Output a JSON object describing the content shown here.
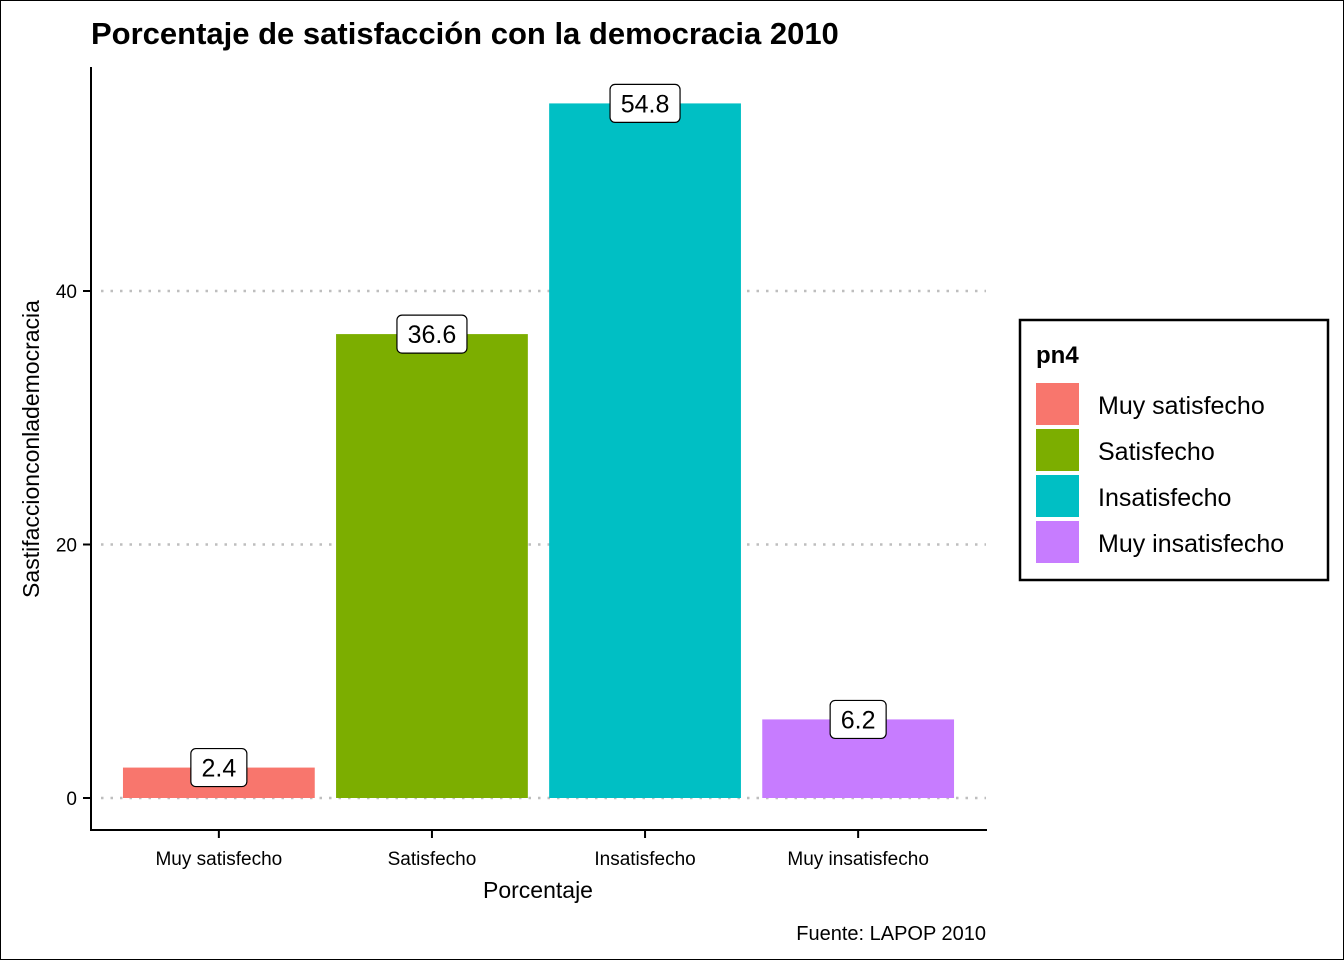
{
  "chart_data": {
    "type": "bar",
    "title": "Porcentaje de satisfacción con la democracia 2010",
    "xlabel": "Porcentaje",
    "ylabel": "Sastifaccionconlademocracia",
    "caption": "Fuente: LAPOP 2010",
    "categories": [
      "Muy satisfecho",
      "Satisfecho",
      "Insatisfecho",
      "Muy insatisfecho"
    ],
    "values": [
      2.4,
      36.6,
      54.8,
      6.2
    ],
    "data_labels": [
      "2.4",
      "36.6",
      "54.8",
      "6.2"
    ],
    "colors": [
      "#F8766D",
      "#7CAE00",
      "#00BFC4",
      "#C77CFF"
    ],
    "yticks": [
      0,
      20,
      40
    ],
    "ytick_labels": [
      "0",
      "20",
      "40"
    ],
    "ylim": [
      -2.5,
      57.5
    ],
    "grid": "horizontal-dotted",
    "legend": {
      "title": "pn4",
      "position": "right",
      "entries": [
        "Muy satisfecho",
        "Satisfecho",
        "Insatisfecho",
        "Muy insatisfecho"
      ]
    }
  }
}
